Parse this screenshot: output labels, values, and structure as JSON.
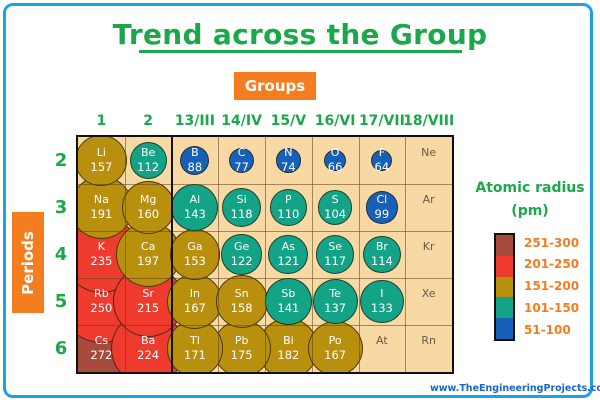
{
  "title": "Trend across the Group",
  "axis_labels": {
    "groups": "Groups",
    "periods": "Periods"
  },
  "group_labels": [
    "1",
    "2",
    "13/III",
    "14/IV",
    "15/V",
    "16/VI",
    "17/VII",
    "18/VIII"
  ],
  "period_labels": [
    "2",
    "3",
    "4",
    "5",
    "6"
  ],
  "legend": {
    "title_line1": "Atomic radius",
    "title_line2": "(pm)",
    "ranges": [
      {
        "label": "251-300",
        "color": "#a74b3c"
      },
      {
        "label": "201-250",
        "color": "#ee3b2e"
      },
      {
        "label": "151-200",
        "color": "#b8900d"
      },
      {
        "label": "101-150",
        "color": "#13a386"
      },
      {
        "label": "51-100",
        "color": "#1760b8"
      }
    ]
  },
  "website": "www.TheEngineeringProjects.com",
  "chart_data": {
    "type": "table",
    "title": "Trend across the Group",
    "xlabel": "Groups",
    "ylabel": "Periods",
    "columns": [
      "1",
      "2",
      "13/III",
      "14/IV",
      "15/V",
      "16/VI",
      "17/VII",
      "18/VIII"
    ],
    "rows": [
      "2",
      "3",
      "4",
      "5",
      "6"
    ],
    "unit": "pm",
    "elements": [
      {
        "symbol": "Li",
        "radius": 157,
        "row": 0,
        "col": 0
      },
      {
        "symbol": "Be",
        "radius": 112,
        "row": 0,
        "col": 1
      },
      {
        "symbol": "B",
        "radius": 88,
        "row": 0,
        "col": 2
      },
      {
        "symbol": "C",
        "radius": 77,
        "row": 0,
        "col": 3
      },
      {
        "symbol": "N",
        "radius": 74,
        "row": 0,
        "col": 4
      },
      {
        "symbol": "O",
        "radius": 66,
        "row": 0,
        "col": 5
      },
      {
        "symbol": "F",
        "radius": 64,
        "row": 0,
        "col": 6
      },
      {
        "symbol": "Ne",
        "radius": null,
        "row": 0,
        "col": 7
      },
      {
        "symbol": "Na",
        "radius": 191,
        "row": 1,
        "col": 0
      },
      {
        "symbol": "Mg",
        "radius": 160,
        "row": 1,
        "col": 1
      },
      {
        "symbol": "Al",
        "radius": 143,
        "row": 1,
        "col": 2
      },
      {
        "symbol": "Si",
        "radius": 118,
        "row": 1,
        "col": 3
      },
      {
        "symbol": "P",
        "radius": 110,
        "row": 1,
        "col": 4
      },
      {
        "symbol": "S",
        "radius": 104,
        "row": 1,
        "col": 5
      },
      {
        "symbol": "Cl",
        "radius": 99,
        "row": 1,
        "col": 6
      },
      {
        "symbol": "Ar",
        "radius": null,
        "row": 1,
        "col": 7
      },
      {
        "symbol": "K",
        "radius": 235,
        "row": 2,
        "col": 0
      },
      {
        "symbol": "Ca",
        "radius": 197,
        "row": 2,
        "col": 1
      },
      {
        "symbol": "Ga",
        "radius": 153,
        "row": 2,
        "col": 2
      },
      {
        "symbol": "Ge",
        "radius": 122,
        "row": 2,
        "col": 3
      },
      {
        "symbol": "As",
        "radius": 121,
        "row": 2,
        "col": 4
      },
      {
        "symbol": "Se",
        "radius": 117,
        "row": 2,
        "col": 5
      },
      {
        "symbol": "Br",
        "radius": 114,
        "row": 2,
        "col": 6
      },
      {
        "symbol": "Kr",
        "radius": null,
        "row": 2,
        "col": 7
      },
      {
        "symbol": "Rb",
        "radius": 250,
        "row": 3,
        "col": 0
      },
      {
        "symbol": "Sr",
        "radius": 215,
        "row": 3,
        "col": 1
      },
      {
        "symbol": "In",
        "radius": 167,
        "row": 3,
        "col": 2
      },
      {
        "symbol": "Sn",
        "radius": 158,
        "row": 3,
        "col": 3
      },
      {
        "symbol": "Sb",
        "radius": 141,
        "row": 3,
        "col": 4
      },
      {
        "symbol": "Te",
        "radius": 137,
        "row": 3,
        "col": 5
      },
      {
        "symbol": "I",
        "radius": 133,
        "row": 3,
        "col": 6
      },
      {
        "symbol": "Xe",
        "radius": null,
        "row": 3,
        "col": 7
      },
      {
        "symbol": "Cs",
        "radius": 272,
        "row": 4,
        "col": 0
      },
      {
        "symbol": "Ba",
        "radius": 224,
        "row": 4,
        "col": 1
      },
      {
        "symbol": "Tl",
        "radius": 171,
        "row": 4,
        "col": 2
      },
      {
        "symbol": "Pb",
        "radius": 175,
        "row": 4,
        "col": 3
      },
      {
        "symbol": "Bi",
        "radius": 182,
        "row": 4,
        "col": 4
      },
      {
        "symbol": "Po",
        "radius": 167,
        "row": 4,
        "col": 5
      },
      {
        "symbol": "At",
        "radius": null,
        "row": 4,
        "col": 6
      },
      {
        "symbol": "Rn",
        "radius": null,
        "row": 4,
        "col": 7
      }
    ],
    "legend": [
      "251-300",
      "201-250",
      "151-200",
      "101-150",
      "51-100"
    ]
  }
}
